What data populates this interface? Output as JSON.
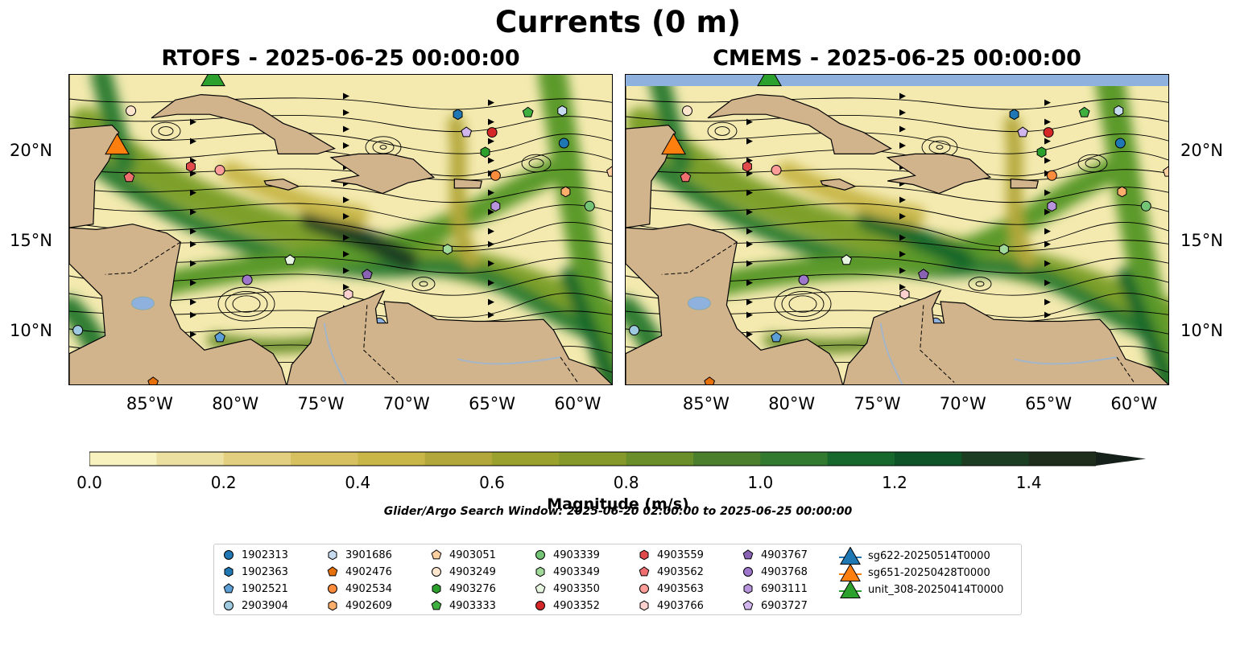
{
  "title": "Currents (0 m)",
  "panels": [
    {
      "title": "RTOFS - 2025-06-25 00:00:00"
    },
    {
      "title": "CMEMS - 2025-06-25 00:00:00"
    }
  ],
  "map_extent": {
    "lon_min": -89.7,
    "lon_max": -57.9,
    "lat_min": 7.0,
    "lat_max": 24.3
  },
  "lon_ticks": [
    "85°W",
    "80°W",
    "75°W",
    "70°W",
    "65°W",
    "60°W"
  ],
  "lat_ticks": [
    "20°N",
    "15°N",
    "10°N"
  ],
  "colorbar": {
    "label": "Magnitude (m/s)",
    "ticks": [
      "0.0",
      "0.2",
      "0.4",
      "0.6",
      "0.8",
      "1.0",
      "1.2",
      "1.4"
    ],
    "range": [
      0.0,
      1.5
    ],
    "colors": [
      "#f8f2bf",
      "#ece0a0",
      "#e3cf80",
      "#d7c060",
      "#c8b748",
      "#b2a73a",
      "#9aa12c",
      "#85982a",
      "#6a8f2a",
      "#4c7f2c",
      "#317a30",
      "#16682c",
      "#0e5428",
      "#1b3e22",
      "#1f2e1c",
      "#16201a"
    ],
    "extend": "max"
  },
  "search_window": "Glider/Argo Search Window: 2025-06-20 02:00:00 to 2025-06-25 00:00:00",
  "colors": {
    "land": "#d2b48c",
    "water_body": "#8fb1de",
    "river": "#a3b5c8"
  },
  "legend": [
    {
      "label": "1902313",
      "marker": "circle",
      "color": "#1f77b4"
    },
    {
      "label": "1902363",
      "marker": "hexagon",
      "color": "#1f77b4"
    },
    {
      "label": "1902521",
      "marker": "pentagon",
      "color": "#5b9fd6"
    },
    {
      "label": "2903904",
      "marker": "circle",
      "color": "#9ecae1"
    },
    {
      "label": "3901686",
      "marker": "hexagon",
      "color": "#c6dbef"
    },
    {
      "label": "4902476",
      "marker": "pentagon",
      "color": "#e6700a"
    },
    {
      "label": "4902534",
      "marker": "circle",
      "color": "#fd8d3c"
    },
    {
      "label": "4902609",
      "marker": "hexagon",
      "color": "#fdae6b"
    },
    {
      "label": "4903051",
      "marker": "pentagon",
      "color": "#fdd0a2"
    },
    {
      "label": "4903249",
      "marker": "circle",
      "color": "#fee6ce"
    },
    {
      "label": "4903276",
      "marker": "hexagon",
      "color": "#2ca02c"
    },
    {
      "label": "4903333",
      "marker": "pentagon",
      "color": "#3fb03f"
    },
    {
      "label": "4903339",
      "marker": "circle",
      "color": "#74c476"
    },
    {
      "label": "4903349",
      "marker": "hexagon",
      "color": "#a1d99b"
    },
    {
      "label": "4903350",
      "marker": "pentagon",
      "color": "#e5f5e0"
    },
    {
      "label": "4903352",
      "marker": "circle",
      "color": "#d62728"
    },
    {
      "label": "4903559",
      "marker": "hexagon",
      "color": "#e04a4a"
    },
    {
      "label": "4903562",
      "marker": "pentagon",
      "color": "#ef6f6f"
    },
    {
      "label": "4903563",
      "marker": "circle",
      "color": "#fc9d9a"
    },
    {
      "label": "4903766",
      "marker": "hexagon",
      "color": "#fdd0d0"
    },
    {
      "label": "4903767",
      "marker": "pentagon",
      "color": "#8a62b3"
    },
    {
      "label": "4903768",
      "marker": "circle",
      "color": "#9e77cc"
    },
    {
      "label": "6903111",
      "marker": "hexagon",
      "color": "#b794dc"
    },
    {
      "label": "6903727",
      "marker": "pentagon",
      "color": "#d1b6ee"
    },
    {
      "label": "sg622-20250514T0000",
      "marker": "triangle-line",
      "color": "#1f77b4"
    },
    {
      "label": "sg651-20250428T0000",
      "marker": "triangle-line",
      "color": "#ff7f0e"
    },
    {
      "label": "unit_308-20250414T0000",
      "marker": "triangle-line",
      "color": "#2ca02c"
    }
  ],
  "markers": [
    {
      "lon": -86.1,
      "lat": 22.3,
      "marker": "circle",
      "color": "#fee6ce"
    },
    {
      "lon": -86.2,
      "lat": 18.6,
      "marker": "pentagon",
      "color": "#ef6f6f"
    },
    {
      "lon": -82.6,
      "lat": 19.2,
      "marker": "hexagon",
      "color": "#e04a4a"
    },
    {
      "lon": -80.9,
      "lat": 19.0,
      "marker": "circle",
      "color": "#fc9d9a"
    },
    {
      "lon": -79.3,
      "lat": 12.9,
      "marker": "circle",
      "color": "#9e77cc"
    },
    {
      "lon": -76.8,
      "lat": 14.0,
      "marker": "pentagon",
      "color": "#e5f5e0"
    },
    {
      "lon": -73.4,
      "lat": 12.1,
      "marker": "hexagon",
      "color": "#fdd0d0"
    },
    {
      "lon": -72.3,
      "lat": 13.2,
      "marker": "pentagon",
      "color": "#8a62b3"
    },
    {
      "lon": -67.6,
      "lat": 14.6,
      "marker": "hexagon",
      "color": "#a1d99b"
    },
    {
      "lon": -67.0,
      "lat": 22.1,
      "marker": "hexagon",
      "color": "#1f77b4"
    },
    {
      "lon": -66.5,
      "lat": 21.1,
      "marker": "pentagon",
      "color": "#d1b6ee"
    },
    {
      "lon": -65.0,
      "lat": 21.1,
      "marker": "circle",
      "color": "#d62728"
    },
    {
      "lon": -65.4,
      "lat": 20.0,
      "marker": "hexagon",
      "color": "#2ca02c"
    },
    {
      "lon": -64.8,
      "lat": 18.7,
      "marker": "circle",
      "color": "#fd8d3c"
    },
    {
      "lon": -64.8,
      "lat": 17.0,
      "marker": "hexagon",
      "color": "#b794dc"
    },
    {
      "lon": -62.9,
      "lat": 22.2,
      "marker": "pentagon",
      "color": "#3fb03f"
    },
    {
      "lon": -60.9,
      "lat": 22.3,
      "marker": "hexagon",
      "color": "#c6dbef"
    },
    {
      "lon": -60.8,
      "lat": 20.5,
      "marker": "circle",
      "color": "#1f77b4"
    },
    {
      "lon": -60.7,
      "lat": 17.8,
      "marker": "hexagon",
      "color": "#fdae6b"
    },
    {
      "lon": -59.3,
      "lat": 17.0,
      "marker": "circle",
      "color": "#74c476"
    },
    {
      "lon": -58.0,
      "lat": 18.9,
      "marker": "pentagon",
      "color": "#fdd0a2"
    },
    {
      "lon": -89.2,
      "lat": 10.1,
      "marker": "circle",
      "color": "#9ecae1"
    },
    {
      "lon": -80.9,
      "lat": 9.7,
      "marker": "pentagon",
      "color": "#5b9fd6"
    },
    {
      "lon": -84.8,
      "lat": 7.2,
      "marker": "pentagon",
      "color": "#e6700a"
    }
  ],
  "gliders": [
    {
      "lon": -86.9,
      "lat": 20.4,
      "color": "#ff7f0e"
    },
    {
      "lon": -81.3,
      "lat": 24.2,
      "color": "#2ca02c"
    }
  ]
}
